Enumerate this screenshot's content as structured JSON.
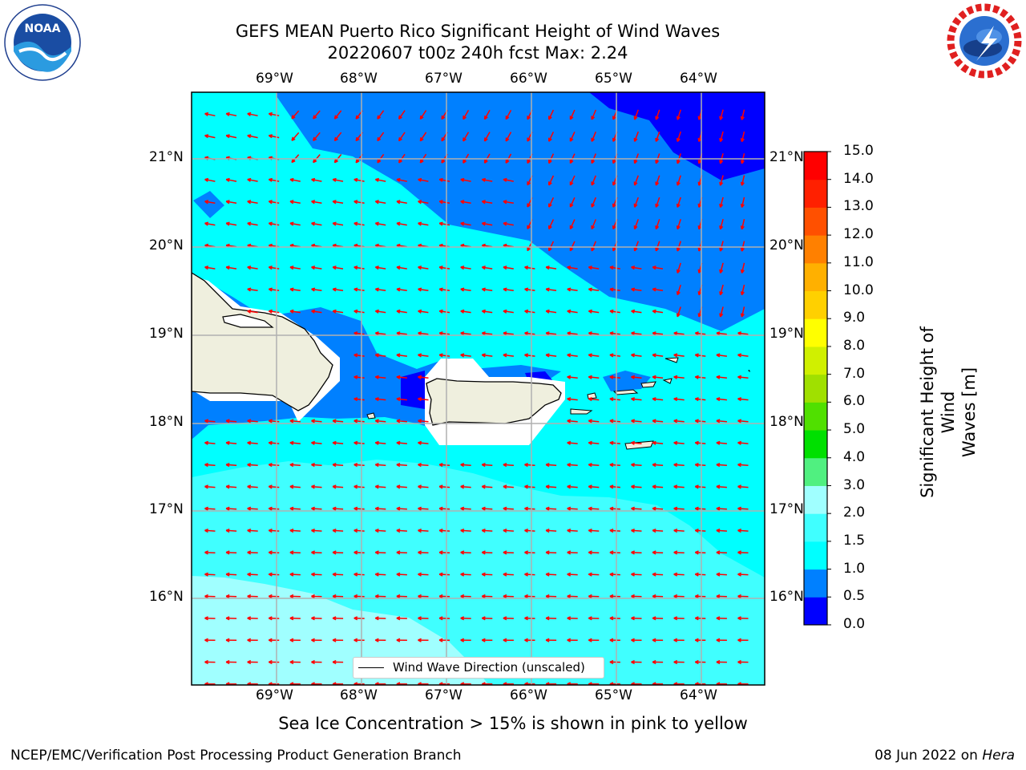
{
  "title": {
    "line1": "GEFS MEAN Puerto Rico Significant Height of Wind Waves",
    "line2": "20220607 t00z 240h fcst   Max: 2.24"
  },
  "map": {
    "lon_labels": [
      "69°W",
      "68°W",
      "67°W",
      "66°W",
      "65°W",
      "64°W"
    ],
    "lat_labels": [
      "21°N",
      "20°N",
      "19°N",
      "18°N",
      "17°N",
      "16°N"
    ],
    "lon_range": [
      -70.0,
      -63.25
    ],
    "lat_range": [
      15.0,
      21.75
    ],
    "grid": true,
    "land_color": "#efefde",
    "arrow_color": "#ff0000"
  },
  "legend": {
    "label": "Wind Wave Direction (unscaled)",
    "placement": "bottom-center"
  },
  "colorbar": {
    "title": "Significant Height of Wind Waves [m]",
    "title_lines": [
      "Significant Height of Wind",
      "Waves [m]"
    ],
    "levels": [
      "0.0",
      "0.5",
      "1.0",
      "1.5",
      "2.0",
      "3.0",
      "4.0",
      "5.0",
      "6.0",
      "7.0",
      "8.0",
      "9.0",
      "10.0",
      "11.0",
      "12.0",
      "13.0",
      "14.0",
      "15.0"
    ],
    "colors": [
      "#0000ff",
      "#0080ff",
      "#00ffff",
      "#40ffff",
      "#a0ffff",
      "#50f080",
      "#00e000",
      "#50e000",
      "#a0e000",
      "#d0f000",
      "#ffff00",
      "#ffd000",
      "#ffb000",
      "#ff8000",
      "#ff5000",
      "#ff2000",
      "#ff0000"
    ]
  },
  "logos": {
    "left": "NOAA",
    "right": "NATIONAL WEATHER SERVICE"
  },
  "footer": {
    "sea_ice": "Sea Ice Concentration > 15% is shown in pink to yellow",
    "credit": "NCEP/EMC/Verification Post Processing Product Generation Branch",
    "date": "08 Jun 2022 on",
    "machine": "Hera"
  }
}
